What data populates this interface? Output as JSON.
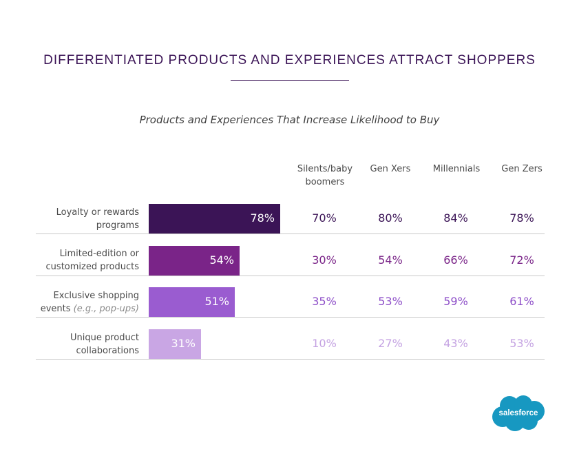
{
  "title": "DIFFERENTIATED PRODUCTS AND EXPERIENCES ATTRACT SHOPPERS",
  "subtitle": "Products and Experiences That Increase Likelihood to Buy",
  "columns": [
    "Silents/baby boomers",
    "Gen Xers",
    "Millennials",
    "Gen Zers"
  ],
  "rows": [
    {
      "label": "Loyalty or rewards programs",
      "label_note": "",
      "overall": "78%",
      "values": [
        "70%",
        "80%",
        "84%",
        "78%"
      ],
      "color": "#3b1456",
      "text_color": "#3b1456"
    },
    {
      "label": "Limited-edition or customized products",
      "label_note": "",
      "overall": "54%",
      "values": [
        "30%",
        "54%",
        "66%",
        "72%"
      ],
      "color": "#7a2488",
      "text_color": "#7a2488"
    },
    {
      "label": "Exclusive shopping events",
      "label_note": "(e.g., pop-ups)",
      "overall": "51%",
      "values": [
        "35%",
        "53%",
        "59%",
        "61%"
      ],
      "color": "#9a5cd0",
      "text_color": "#8d4ec8"
    },
    {
      "label": "Unique product collaborations",
      "label_note": "",
      "overall": "31%",
      "values": [
        "10%",
        "27%",
        "43%",
        "53%"
      ],
      "color": "#c9a6e4",
      "text_color": "#c4a2e2"
    }
  ],
  "chart_data": {
    "type": "bar",
    "title": "DIFFERENTIATED PRODUCTS AND EXPERIENCES ATTRACT SHOPPERS",
    "subtitle": "Products and Experiences That Increase Likelihood to Buy",
    "categories": [
      "Loyalty or rewards programs",
      "Limited-edition or customized products",
      "Exclusive shopping events (e.g., pop-ups)",
      "Unique product collaborations"
    ],
    "values": [
      78,
      54,
      51,
      31
    ],
    "xlim": [
      0,
      100
    ],
    "table_columns": [
      "Silents/baby boomers",
      "Gen Xers",
      "Millennials",
      "Gen Zers"
    ],
    "table_values": [
      [
        70,
        80,
        84,
        78
      ],
      [
        30,
        54,
        66,
        72
      ],
      [
        35,
        53,
        59,
        61
      ],
      [
        10,
        27,
        43,
        53
      ]
    ]
  },
  "logo": {
    "text": "salesforce",
    "color": "#1798c1"
  }
}
